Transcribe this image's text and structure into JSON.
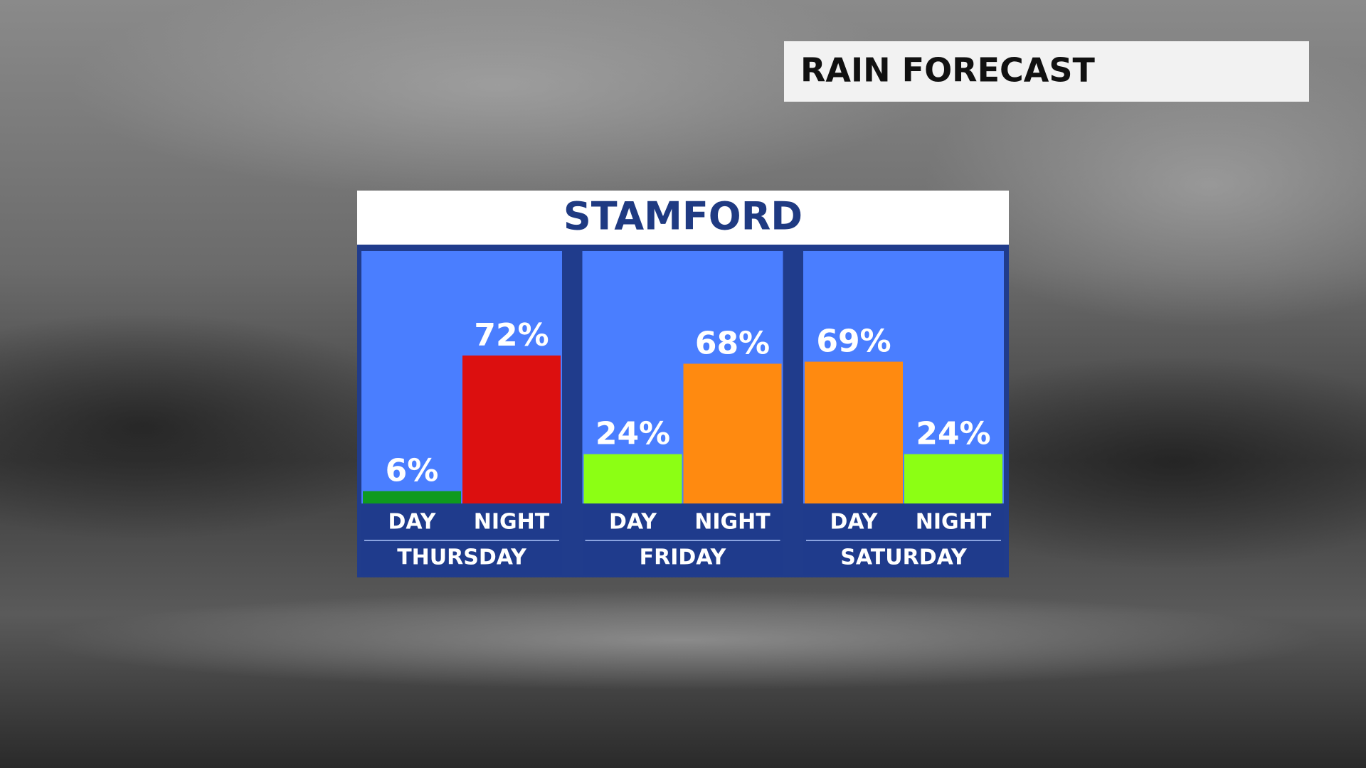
{
  "chart_data": {
    "type": "bar",
    "title": "RAIN FORECAST",
    "subtitle": "STAMFORD",
    "categories": [
      "THURSDAY",
      "FRIDAY",
      "SATURDAY"
    ],
    "series": [
      {
        "name": "DAY",
        "values": [
          6,
          24,
          69
        ],
        "value_labels": [
          "6%",
          "24%",
          "69%"
        ],
        "colors": [
          "#0f9a1e",
          "#8cff14",
          "#ff8a10"
        ]
      },
      {
        "name": "NIGHT",
        "values": [
          72,
          68,
          24
        ],
        "value_labels": [
          "72%",
          "68%",
          "24%"
        ],
        "colors": [
          "#dc0f0f",
          "#ff8a10",
          "#8cff14"
        ]
      }
    ],
    "ylim": [
      0,
      100
    ]
  }
}
